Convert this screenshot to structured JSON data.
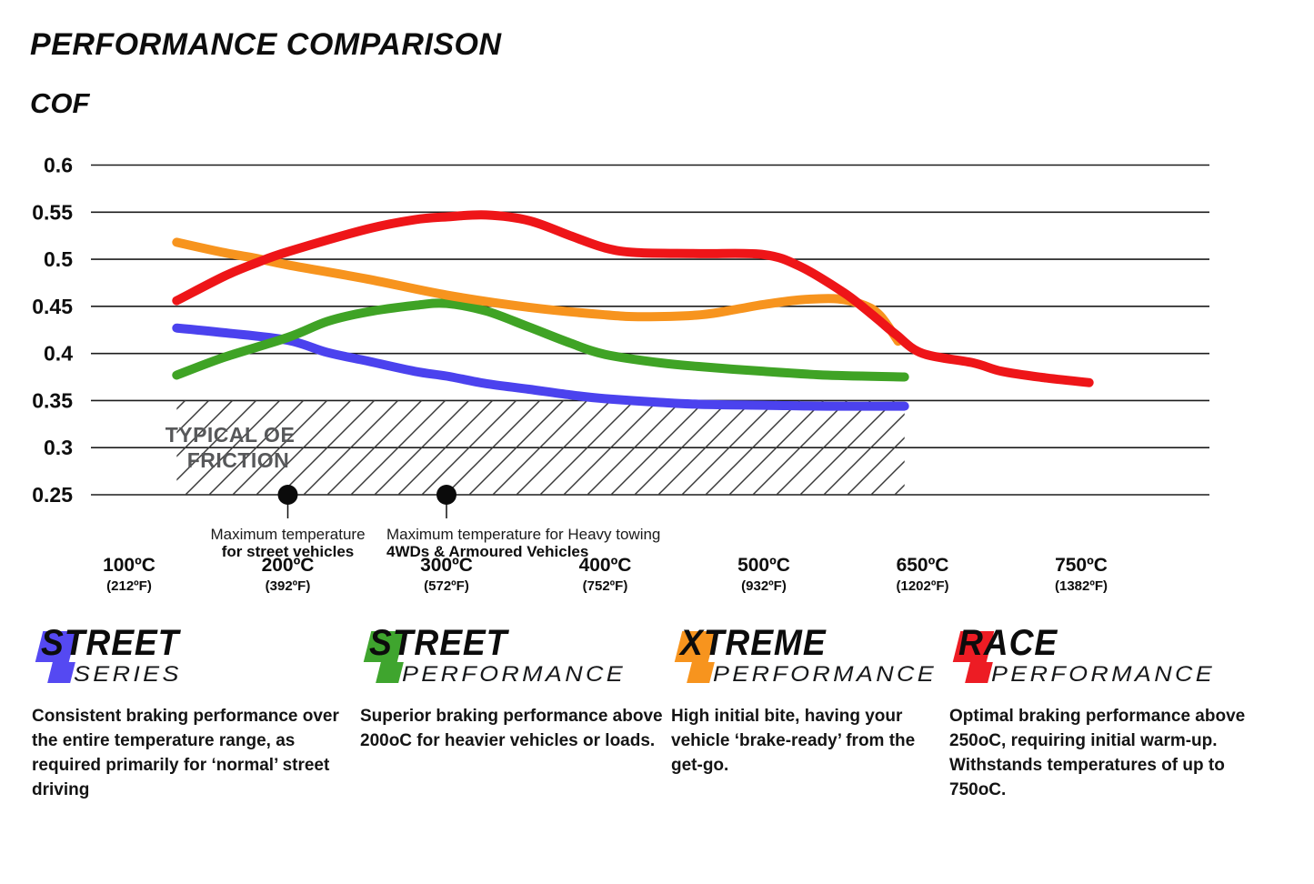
{
  "header": {
    "title": "PERFORMANCE COMPARISON",
    "axis_label": "COF"
  },
  "chart_data": {
    "type": "line",
    "title": "PERFORMANCE COMPARISON",
    "ylabel": "COF",
    "grid": true,
    "ylim": [
      0.25,
      0.6
    ],
    "y_ticks": [
      "0.6",
      "0.55",
      "0.5",
      "0.45",
      "0.4",
      "0.35",
      "0.3",
      "0.25"
    ],
    "y_tick_values": [
      0.6,
      0.55,
      0.5,
      0.45,
      0.4,
      0.35,
      0.3,
      0.25
    ],
    "x_ticks": [
      {
        "temp": 100,
        "label_c": "100ºC",
        "label_f": "(212ºF)"
      },
      {
        "temp": 200,
        "label_c": "200ºC",
        "label_f": "(392ºF)"
      },
      {
        "temp": 300,
        "label_c": "300ºC",
        "label_f": "(572ºF)"
      },
      {
        "temp": 400,
        "label_c": "400ºC",
        "label_f": "(752ºF)"
      },
      {
        "temp": 500,
        "label_c": "500ºC",
        "label_f": "(932ºF)"
      },
      {
        "temp": 650,
        "label_c": "650ºC",
        "label_f": "(1202ºF)"
      },
      {
        "temp": 750,
        "label_c": "750ºC",
        "label_f": "(1382ºF)"
      }
    ],
    "series": [
      {
        "name": "Street Series",
        "color": "#4b42ee",
        "points": [
          [
            130,
            0.427
          ],
          [
            160,
            0.422
          ],
          [
            200,
            0.414
          ],
          [
            225,
            0.401
          ],
          [
            250,
            0.392
          ],
          [
            280,
            0.381
          ],
          [
            300,
            0.376
          ],
          [
            325,
            0.368
          ],
          [
            352,
            0.362
          ],
          [
            378,
            0.356
          ],
          [
            400,
            0.352
          ],
          [
            435,
            0.348
          ],
          [
            460,
            0.346
          ],
          [
            500,
            0.345
          ],
          [
            560,
            0.344
          ],
          [
            633,
            0.344
          ]
        ]
      },
      {
        "name": "Street Performance",
        "color": "#3fa325",
        "points": [
          [
            130,
            0.377
          ],
          [
            160,
            0.396
          ],
          [
            200,
            0.417
          ],
          [
            225,
            0.434
          ],
          [
            250,
            0.444
          ],
          [
            280,
            0.451
          ],
          [
            300,
            0.453
          ],
          [
            325,
            0.445
          ],
          [
            352,
            0.428
          ],
          [
            378,
            0.411
          ],
          [
            400,
            0.399
          ],
          [
            435,
            0.39
          ],
          [
            460,
            0.386
          ],
          [
            500,
            0.381
          ],
          [
            560,
            0.377
          ],
          [
            633,
            0.375
          ]
        ]
      },
      {
        "name": "Xtreme Performance",
        "color": "#f7941e",
        "points": [
          [
            130,
            0.518
          ],
          [
            160,
            0.507
          ],
          [
            180,
            0.501
          ],
          [
            200,
            0.494
          ],
          [
            250,
            0.479
          ],
          [
            300,
            0.462
          ],
          [
            352,
            0.449
          ],
          [
            400,
            0.441
          ],
          [
            424,
            0.439
          ],
          [
            460,
            0.441
          ],
          [
            483,
            0.447
          ],
          [
            500,
            0.452
          ],
          [
            535,
            0.457
          ],
          [
            570,
            0.458
          ],
          [
            595,
            0.451
          ],
          [
            610,
            0.44
          ],
          [
            627,
            0.413
          ]
        ]
      },
      {
        "name": "Race Performance",
        "color": "#ee1518",
        "points": [
          [
            130,
            0.456
          ],
          [
            160,
            0.482
          ],
          [
            180,
            0.496
          ],
          [
            200,
            0.508
          ],
          [
            250,
            0.532
          ],
          [
            280,
            0.542
          ],
          [
            300,
            0.545
          ],
          [
            325,
            0.547
          ],
          [
            352,
            0.541
          ],
          [
            378,
            0.525
          ],
          [
            400,
            0.512
          ],
          [
            420,
            0.507
          ],
          [
            460,
            0.506
          ],
          [
            500,
            0.505
          ],
          [
            535,
            0.492
          ],
          [
            575,
            0.465
          ],
          [
            595,
            0.448
          ],
          [
            610,
            0.434
          ],
          [
            625,
            0.42
          ],
          [
            650,
            0.4
          ],
          [
            682,
            0.39
          ],
          [
            700,
            0.381
          ],
          [
            728,
            0.374
          ],
          [
            755,
            0.369
          ]
        ]
      }
    ],
    "oe_region": {
      "label_line1": "TYPICAL OE",
      "label_line2": "FRICTION",
      "x_range": [
        130,
        633
      ],
      "y_range": [
        0.25,
        0.35
      ]
    },
    "annotations": [
      {
        "temp": 200,
        "align": "center",
        "line1": "Maximum temperature",
        "line2": "for street vehicles"
      },
      {
        "temp": 300,
        "align": "left",
        "line1": "Maximum temperature for Heavy towing",
        "line2": "4WDs & Armoured Vehicles"
      }
    ]
  },
  "legend": [
    {
      "word1": "STREET",
      "word2": "SERIES",
      "color": "#5549f2",
      "description": "Consistent braking performance over the entire temperature range, as required primarily for ‘normal’ street driving"
    },
    {
      "word1": "STREET",
      "word2": "PERFORMANCE",
      "color": "#3fa52e",
      "description": "Superior braking performance above 200oC for heavier vehicles or loads."
    },
    {
      "word1": "XTREME",
      "word2": "PERFORMANCE",
      "color": "#f7941e",
      "description": "High initial bite, having your vehicle ‘brake-ready’ from the get-go."
    },
    {
      "word1": "RACE",
      "word2": "PERFORMANCE",
      "color": "#ed1c24",
      "description": "Optimal braking performance above 250oC, requiring initial warm-up. Withstands temperatures of up to 750oC."
    }
  ]
}
